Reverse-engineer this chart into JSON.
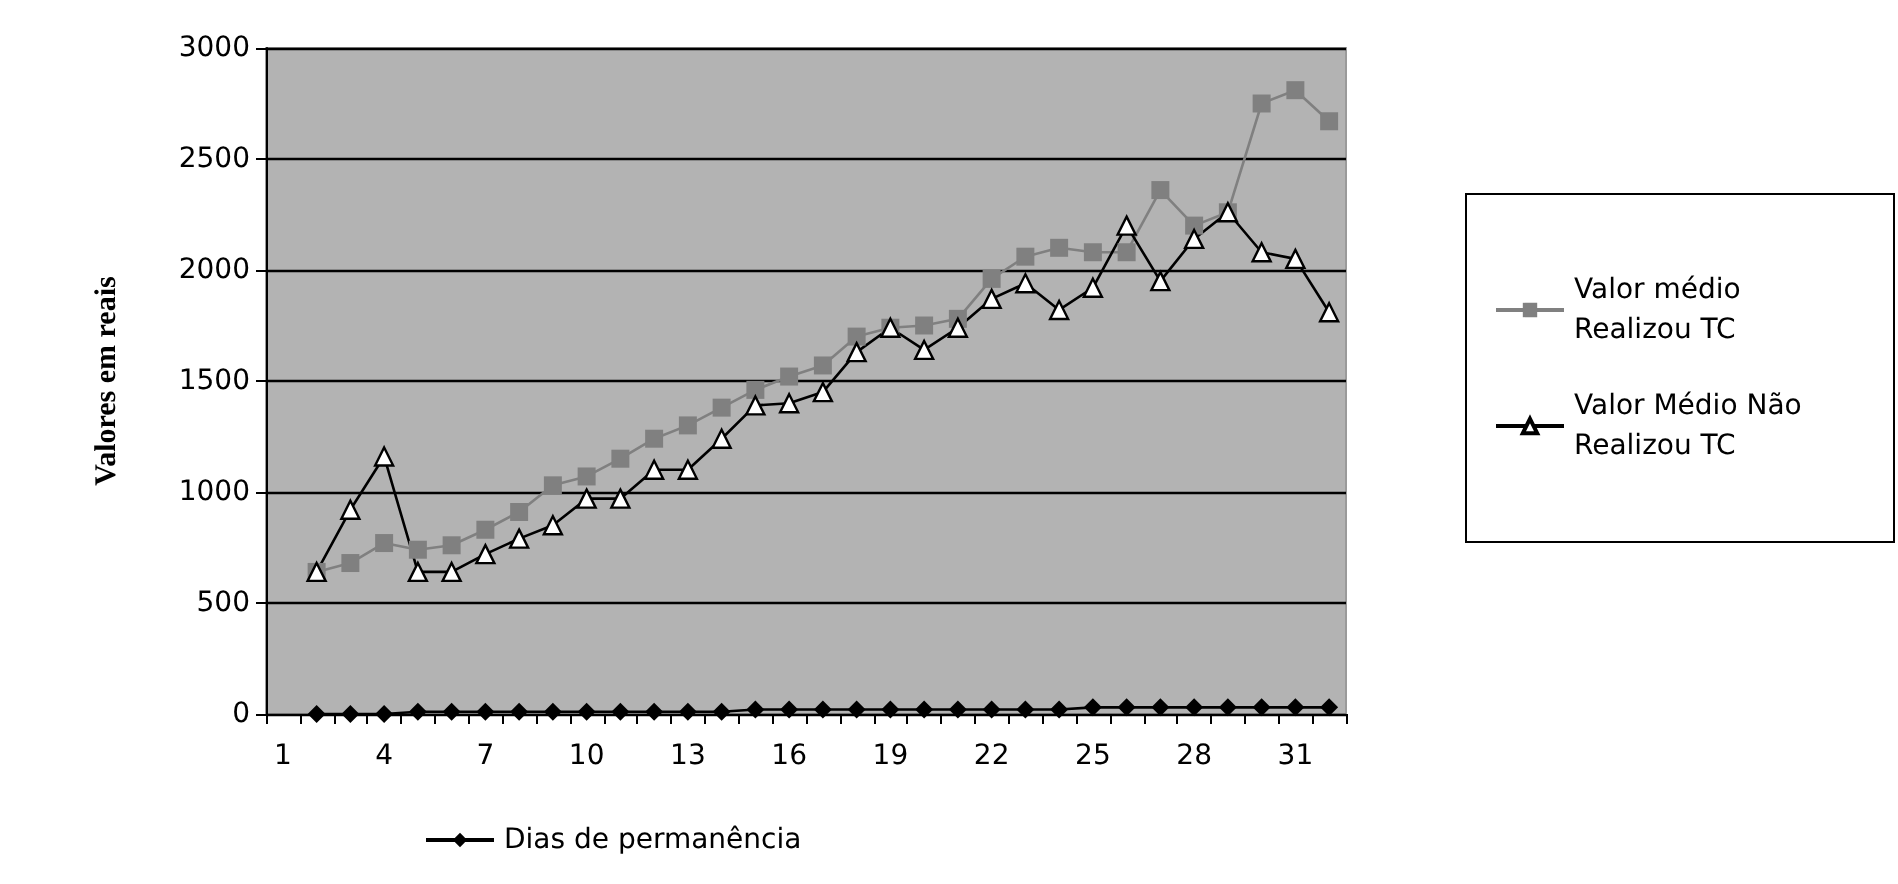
{
  "chart_data": {
    "type": "line",
    "ylabel": "Valores em reais",
    "categories": [
      "1",
      null,
      null,
      "4",
      null,
      null,
      "7",
      null,
      null,
      "10",
      null,
      null,
      "13",
      null,
      null,
      "16",
      null,
      null,
      "19",
      null,
      null,
      "22",
      null,
      null,
      "25",
      null,
      null,
      "28",
      null,
      null,
      "31",
      null
    ],
    "series": [
      {
        "name": "Valor médio Realizou TC",
        "color": "#808080",
        "marker": "square",
        "values": [
          null,
          640,
          680,
          770,
          740,
          760,
          830,
          910,
          1030,
          1070,
          1150,
          1240,
          1300,
          1380,
          1460,
          1520,
          1570,
          1700,
          1740,
          1750,
          1780,
          1960,
          2060,
          2100,
          2080,
          2080,
          2360,
          2200,
          2260,
          2750,
          2810,
          2670
        ]
      },
      {
        "name": "Valor Médio Não Realizou TC",
        "color": "#000000",
        "marker": "triangle",
        "values": [
          null,
          640,
          920,
          1160,
          640,
          640,
          720,
          790,
          850,
          970,
          970,
          1100,
          1100,
          1240,
          1390,
          1400,
          1450,
          1630,
          1740,
          1640,
          1740,
          1870,
          1940,
          1820,
          1920,
          2200,
          1950,
          2140,
          2260,
          2080,
          2050,
          1810
        ]
      },
      {
        "name": "Dias de permanência",
        "color": "#000000",
        "marker": "diamond",
        "values": [
          null,
          0,
          0,
          0,
          10,
          10,
          10,
          10,
          10,
          10,
          10,
          10,
          10,
          10,
          20,
          20,
          20,
          20,
          20,
          20,
          20,
          20,
          20,
          20,
          30,
          30,
          30,
          30,
          30,
          30,
          30,
          30
        ]
      }
    ],
    "ylim": [
      0,
      3000
    ],
    "yticks": [
      0,
      500,
      1000,
      1500,
      2000,
      2500,
      3000
    ],
    "grid": "y",
    "legend": "right",
    "line_style": "solid"
  }
}
